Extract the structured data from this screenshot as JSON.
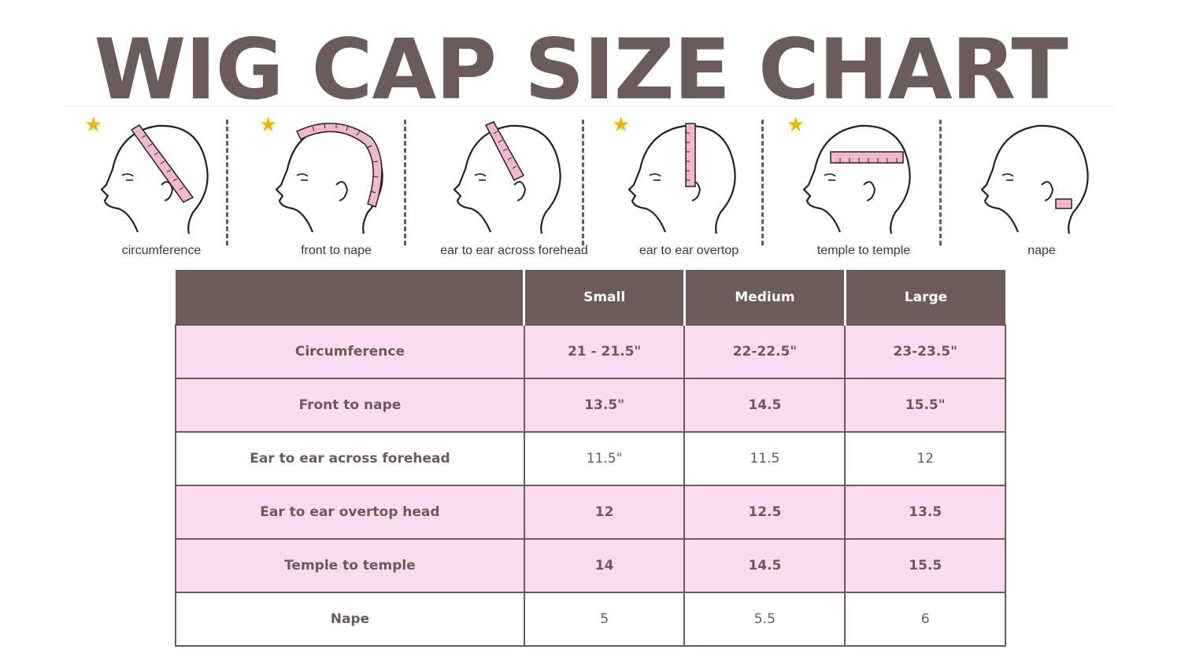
{
  "title": "WIG CAP SIZE CHART",
  "colors": {
    "title": "#6b5b5b",
    "header_bg": "#6b5b5b",
    "pink_row": "#f9dcef",
    "tape": "#f3b6cf",
    "star": "#f5b400"
  },
  "measurements": [
    {
      "label": "circumference",
      "starred": true,
      "icon": "head-circumference-icon"
    },
    {
      "label": "front to nape",
      "starred": true,
      "icon": "head-front-to-nape-icon"
    },
    {
      "label": "ear to ear across forehead",
      "starred": false,
      "icon": "head-ear-to-ear-forehead-icon"
    },
    {
      "label": "ear to ear overtop",
      "starred": true,
      "icon": "head-ear-to-ear-overtop-icon"
    },
    {
      "label": "temple to temple",
      "starred": true,
      "icon": "head-temple-to-temple-icon"
    },
    {
      "label": "nape",
      "starred": false,
      "icon": "head-nape-icon"
    }
  ],
  "chart_data": {
    "type": "table",
    "columns": [
      "",
      "Small",
      "Medium",
      "Large"
    ],
    "rows": [
      {
        "label": "Circumference",
        "values": [
          "21 - 21.5\"",
          "22-22.5\"",
          "23-23.5\""
        ],
        "style": "pink"
      },
      {
        "label": "Front to nape",
        "values": [
          "13.5\"",
          "14.5",
          "15.5\""
        ],
        "style": "pink"
      },
      {
        "label": "Ear to ear across forehead",
        "values": [
          "11.5\"",
          "11.5",
          "12"
        ],
        "style": "white"
      },
      {
        "label": "Ear to ear overtop head",
        "values": [
          "12",
          "12.5",
          "13.5"
        ],
        "style": "pink"
      },
      {
        "label": "Temple to temple",
        "values": [
          "14",
          "14.5",
          "15.5"
        ],
        "style": "pink"
      },
      {
        "label": "Nape",
        "values": [
          "5",
          "5.5",
          "6"
        ],
        "style": "white"
      }
    ]
  }
}
